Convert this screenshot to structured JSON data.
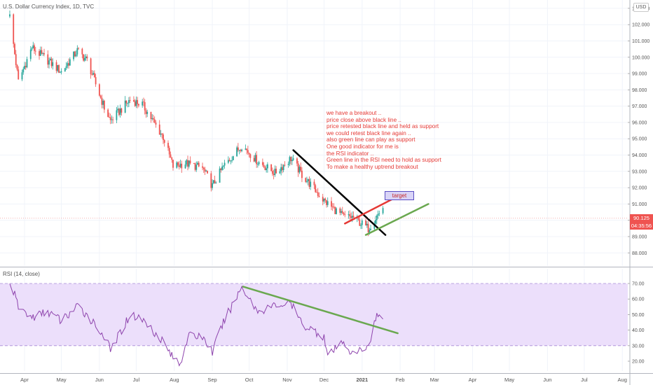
{
  "header": {
    "title": "U.S. Dollar Currency Index, 1D, TVC",
    "currency": "USD",
    "rsi_title": "RSI (14, close)"
  },
  "price_tags": {
    "last_price": "90.125",
    "countdown": "04:35:56"
  },
  "annotation": {
    "lines": [
      "we have a breakout ..",
      "price close above black line ..",
      "price retested black line and held as support",
      "we could retest black line again ..",
      "also green line can play as support",
      "One good indicator for me is",
      "the RSI indicator ..",
      "Green line in the RSI need to hold as support",
      "To make a healthy uptrend breakout"
    ],
    "target_label": "target"
  },
  "colors": {
    "up": "#26a69a",
    "down": "#ef5350",
    "rsi_line": "#8e44ad",
    "rsi_band": "#ecdffb",
    "red_line": "#e53935",
    "green_line": "#6aa84f",
    "black_line": "#000000",
    "grid": "#f0f3fa"
  },
  "chart_data": [
    {
      "type": "candlestick",
      "title": "U.S. Dollar Currency Index, 1D, TVC",
      "x_tick_labels": [
        "Apr",
        "May",
        "Jun",
        "Jul",
        "Aug",
        "Sep",
        "Oct",
        "Nov",
        "Dec",
        "2021",
        "Feb",
        "Mar",
        "Apr",
        "May",
        "Jun",
        "Jul",
        "Aug"
      ],
      "y_tick_labels": [
        "88.000",
        "89.000",
        "90.000",
        "91.000",
        "92.000",
        "93.000",
        "94.000",
        "95.000",
        "96.000",
        "97.000",
        "98.000",
        "99.000",
        "100.000",
        "101.000",
        "102.000",
        "103.000"
      ],
      "ylim": [
        87.8,
        104.1
      ],
      "last_price": 90.125,
      "close_keypoints": [
        [
          "2020-03-20",
          102.5
        ],
        [
          "2020-03-27",
          98.5
        ],
        [
          "2020-04-07",
          100.6
        ],
        [
          "2020-04-20",
          99.8
        ],
        [
          "2020-05-01",
          99.1
        ],
        [
          "2020-05-14",
          100.4
        ],
        [
          "2020-05-22",
          99.8
        ],
        [
          "2020-06-05",
          96.9
        ],
        [
          "2020-06-10",
          96.1
        ],
        [
          "2020-06-26",
          97.4
        ],
        [
          "2020-07-06",
          97.1
        ],
        [
          "2020-07-23",
          95.1
        ],
        [
          "2020-07-31",
          93.3
        ],
        [
          "2020-08-10",
          93.5
        ],
        [
          "2020-08-24",
          93.2
        ],
        [
          "2020-09-01",
          92.1
        ],
        [
          "2020-09-10",
          93.3
        ],
        [
          "2020-09-25",
          94.6
        ],
        [
          "2020-10-08",
          93.6
        ],
        [
          "2020-10-22",
          92.9
        ],
        [
          "2020-11-04",
          93.8
        ],
        [
          "2020-11-13",
          92.8
        ],
        [
          "2020-12-01",
          91.2
        ],
        [
          "2020-12-17",
          90.2
        ],
        [
          "2020-12-24",
          90.2
        ],
        [
          "2021-01-06",
          89.5
        ],
        [
          "2021-01-18",
          90.8
        ]
      ],
      "trendlines": [
        {
          "color": "black",
          "from": [
            "2020-11-06",
            94.3
          ],
          "to": [
            "2021-01-20",
            89.1
          ]
        },
        {
          "color": "red",
          "from": [
            "2020-12-18",
            89.8
          ],
          "to": [
            "2021-02-05",
            91.7
          ]
        },
        {
          "color": "green",
          "from": [
            "2021-01-04",
            89.1
          ],
          "to": [
            "2021-02-24",
            91.0
          ]
        }
      ]
    },
    {
      "type": "line",
      "title": "RSI (14, close)",
      "ylim": [
        15,
        78
      ],
      "y_tick_labels": [
        "20.00",
        "30.00",
        "40.00",
        "50.00",
        "60.00",
        "70.00"
      ],
      "bands": [
        30,
        70
      ],
      "keypoints": [
        [
          "2020-03-20",
          72
        ],
        [
          "2020-03-27",
          55
        ],
        [
          "2020-04-07",
          48
        ],
        [
          "2020-04-20",
          52
        ],
        [
          "2020-05-01",
          46
        ],
        [
          "2020-05-14",
          55
        ],
        [
          "2020-05-22",
          50
        ],
        [
          "2020-06-05",
          36
        ],
        [
          "2020-06-10",
          27
        ],
        [
          "2020-06-26",
          50
        ],
        [
          "2020-07-06",
          47
        ],
        [
          "2020-07-23",
          33
        ],
        [
          "2020-07-31",
          22
        ],
        [
          "2020-08-06",
          19
        ],
        [
          "2020-08-12",
          36
        ],
        [
          "2020-08-24",
          36
        ],
        [
          "2020-09-01",
          26
        ],
        [
          "2020-09-10",
          45
        ],
        [
          "2020-09-25",
          68
        ],
        [
          "2020-10-08",
          52
        ],
        [
          "2020-10-22",
          56
        ],
        [
          "2020-11-04",
          57
        ],
        [
          "2020-11-13",
          44
        ],
        [
          "2020-12-01",
          36
        ],
        [
          "2020-12-04",
          23
        ],
        [
          "2020-12-17",
          33
        ],
        [
          "2020-12-24",
          24
        ],
        [
          "2021-01-06",
          30
        ],
        [
          "2021-01-13",
          50
        ],
        [
          "2021-01-18",
          46
        ]
      ],
      "trendlines": [
        {
          "color": "green",
          "from": [
            "2020-09-26",
            68
          ],
          "to": [
            "2021-01-30",
            38
          ]
        }
      ]
    }
  ]
}
